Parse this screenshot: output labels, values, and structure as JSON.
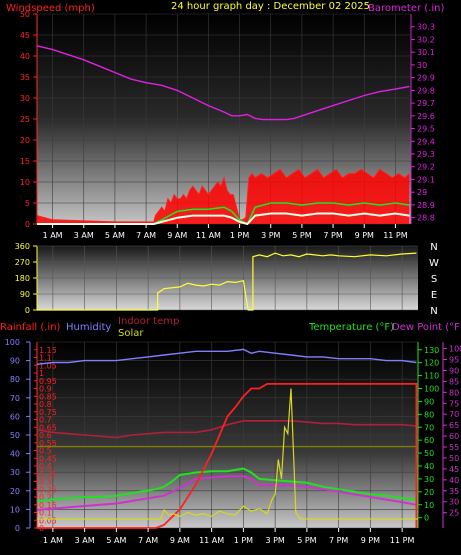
{
  "header": {
    "title": "24 hour graph day : December 02 2025"
  },
  "colors": {
    "wind": "#ff2020",
    "gust_fill": "#ff0000",
    "wind_green": "#22e022",
    "wind_white": "#e8ffe8",
    "barometer": "#e020e0",
    "direction": "#ffff30",
    "rainfall": "#ff2020",
    "humidity": "#8080ff",
    "indoor_temp": "#b0203a",
    "solar": "#d8d820",
    "solar_line": "#808000",
    "temperature": "#22e022",
    "dew_point": "#cc33cc",
    "time_ticks": "#ffffff"
  },
  "time_labels": [
    "1 AM",
    "3 AM",
    "5 AM",
    "7 AM",
    "9 AM",
    "11 AM",
    "1 PM",
    "3 PM",
    "5 PM",
    "7 PM",
    "9 PM",
    "11 PM"
  ],
  "chart_data": [
    {
      "type": "line",
      "id": "wind_barometer",
      "title": "24 hour graph day : December 02 2025",
      "left_axis_label": "Windspeed (mph)",
      "right_axis_label": "Barometer (.in)",
      "x_unit": "hour",
      "xlim": [
        0,
        24
      ],
      "left_ylim": [
        0,
        50
      ],
      "right_ylim": [
        28.75,
        30.4
      ],
      "left_ticks": [
        0,
        5,
        10,
        15,
        20,
        25,
        30,
        35,
        40,
        45,
        50
      ],
      "right_ticks": [
        "28.8",
        "28.9",
        "29",
        "29.1",
        "29.2",
        "29.3",
        "29.4",
        "29.5",
        "29.6",
        "29.7",
        "29.8",
        "29.9",
        "30",
        "30.1",
        "30.2",
        "30.3"
      ],
      "series": [
        {
          "name": "Windspeed",
          "role": "gust",
          "x": [
            0,
            0.5,
            1,
            5,
            7.5,
            7.6,
            7.8,
            8.0,
            8.2,
            8.4,
            8.6,
            8.8,
            9.0,
            9.2,
            9.4,
            9.6,
            9.8,
            10.0,
            10.2,
            10.4,
            10.6,
            10.8,
            11.0,
            11.2,
            11.4,
            11.6,
            11.8,
            12.0,
            12.2,
            12.4,
            12.6,
            12.8,
            13.0,
            13.2,
            13.4,
            13.6,
            13.8,
            14.0,
            14.4,
            14.8,
            15.2,
            15.6,
            16.0,
            16.4,
            16.8,
            17.2,
            17.6,
            18.0,
            18.4,
            18.8,
            19.2,
            19.6,
            20.0,
            20.4,
            20.8,
            21.2,
            21.6,
            22.0,
            22.4,
            22.8,
            23.2,
            23.6,
            23.9
          ],
          "y": [
            2,
            1.5,
            1,
            0.5,
            0.5,
            2,
            3,
            4,
            3,
            6,
            5,
            7,
            6,
            6,
            7,
            6,
            8,
            9,
            8,
            7,
            9,
            8,
            7,
            8,
            9,
            10,
            9,
            11,
            8,
            7,
            7,
            4,
            1,
            1,
            1.5,
            11,
            12,
            11,
            12,
            11,
            12,
            13,
            11,
            12,
            13,
            11,
            12,
            13,
            11,
            12,
            13,
            11,
            12,
            12,
            13,
            12,
            11,
            13,
            12,
            11,
            12,
            11,
            12
          ]
        },
        {
          "name": "Windspeed",
          "role": "average",
          "x": [
            0,
            7.5,
            8.0,
            8.5,
            9,
            10,
            11,
            12,
            12.5,
            13,
            13.5,
            14,
            15,
            16,
            17,
            18,
            19,
            20,
            21,
            22,
            23,
            23.9
          ],
          "y": [
            0,
            0,
            1,
            2,
            3,
            3.5,
            3.5,
            4,
            3,
            1,
            0,
            4,
            5,
            5,
            4.5,
            5,
            5,
            4.5,
            5,
            4.5,
            5,
            4.5
          ]
        },
        {
          "name": "Windspeed",
          "role": "speed",
          "x": [
            0,
            7.5,
            8.0,
            8.5,
            9,
            10,
            11,
            12,
            12.5,
            13,
            13.5,
            14,
            15,
            16,
            17,
            18,
            19,
            20,
            21,
            22,
            23,
            23.9
          ],
          "y": [
            0,
            0,
            0.5,
            1,
            1.5,
            2,
            2,
            2,
            1.5,
            0.5,
            0,
            2,
            2.5,
            2.5,
            2,
            2.5,
            2.5,
            2,
            2.5,
            2,
            2.5,
            2
          ]
        },
        {
          "name": "Barometer",
          "x": [
            0,
            1,
            2,
            3,
            4,
            5,
            6,
            7,
            8,
            9,
            10,
            11,
            12,
            12.5,
            13,
            13.5,
            14,
            14.5,
            15,
            15.5,
            16,
            16.5,
            17,
            18,
            19,
            20,
            21,
            22,
            23,
            23.9
          ],
          "y": [
            30.15,
            30.12,
            30.08,
            30.04,
            29.99,
            29.94,
            29.89,
            29.86,
            29.84,
            29.8,
            29.74,
            29.68,
            29.63,
            29.6,
            29.6,
            29.61,
            29.58,
            29.57,
            29.57,
            29.57,
            29.57,
            29.58,
            29.6,
            29.64,
            29.68,
            29.72,
            29.76,
            29.79,
            29.81,
            29.83
          ]
        }
      ]
    },
    {
      "type": "line",
      "id": "wind_direction",
      "xlim": [
        0,
        24
      ],
      "ylim": [
        0,
        360
      ],
      "left_ticks": [
        0,
        90,
        180,
        270,
        360
      ],
      "right_labels": [
        "N",
        "W",
        "S",
        "E",
        "N"
      ],
      "series": [
        {
          "name": "Wind direction",
          "x": [
            0,
            7.6,
            7.6,
            8,
            9,
            9.5,
            10,
            10.5,
            11,
            11.5,
            12,
            12.5,
            13,
            13.3,
            13.6,
            13.6,
            14,
            14.5,
            15,
            15.5,
            16,
            16.5,
            17,
            17.5,
            18,
            18.5,
            19,
            20,
            21,
            22,
            23,
            23.9
          ],
          "y": [
            0,
            0,
            95,
            120,
            130,
            150,
            140,
            135,
            145,
            140,
            160,
            155,
            165,
            0,
            0,
            300,
            310,
            300,
            320,
            305,
            310,
            300,
            315,
            310,
            305,
            310,
            305,
            300,
            310,
            305,
            315,
            320
          ]
        }
      ]
    },
    {
      "type": "line",
      "id": "rain_humidity_temperature",
      "legend": [
        "Rainfall (.in)",
        "Humidity",
        "Indoor temp",
        "Solar",
        "Temperature (°F)",
        "Dew Point (°F)"
      ],
      "xlim": [
        0,
        24
      ],
      "rain_ticks": [
        "0",
        "0.05",
        "0.1",
        "0.15",
        "0.2",
        "0.25",
        "0.3",
        "0.35",
        "0.4",
        "0.45",
        "0.5",
        "0.55",
        "0.6",
        "0.65",
        "0.7",
        "0.75",
        "0.8",
        "0.85",
        "0.9",
        "0.95",
        "1",
        "1.05",
        "1.1",
        "1.15"
      ],
      "rain_ylim": [
        0,
        1.2
      ],
      "humidity_ticks": [
        0,
        10,
        20,
        30,
        40,
        50,
        60,
        70,
        80,
        90,
        100
      ],
      "humidity_ylim": [
        0,
        100
      ],
      "temperature_ticks": [
        0,
        10,
        20,
        30,
        40,
        50,
        60,
        70,
        80,
        90,
        100,
        110,
        120,
        130
      ],
      "temperature_ylim": [
        -8,
        136
      ],
      "dew_point_ticks": [
        25,
        30,
        35,
        40,
        45,
        50,
        55,
        60,
        65,
        70,
        75,
        80,
        85,
        90,
        95,
        100
      ],
      "dew_point_ylim": [
        18,
        103
      ],
      "series": [
        {
          "name": "Humidity",
          "axis": "humidity",
          "x": [
            0,
            1,
            2,
            3,
            4,
            5,
            6,
            7,
            8,
            9,
            10,
            11,
            12,
            13,
            13.5,
            14,
            15,
            16,
            17,
            18,
            19,
            20,
            21,
            22,
            23,
            23.9
          ],
          "y": [
            88,
            89,
            89,
            90,
            90,
            90,
            91,
            92,
            93,
            94,
            95,
            95,
            95,
            96,
            94,
            95,
            94,
            93,
            92,
            92,
            91,
            91,
            91,
            90,
            90,
            89
          ]
        },
        {
          "name": "Indoor temp",
          "axis": "temperature",
          "x": [
            0,
            1,
            2,
            3,
            4,
            5,
            6,
            7,
            8,
            9,
            10,
            11,
            12,
            13,
            14,
            15,
            16,
            17,
            18,
            19,
            20,
            21,
            22,
            23,
            23.9
          ],
          "y": [
            68,
            66,
            65,
            64,
            63,
            62,
            64,
            65,
            66,
            66,
            66,
            68,
            72,
            75,
            75,
            75,
            75,
            74,
            73,
            73,
            72,
            72,
            72,
            72,
            71
          ]
        },
        {
          "name": "Solar",
          "axis": "temperature",
          "role": "reference",
          "x": [
            0,
            23.9
          ],
          "y": [
            55,
            55
          ]
        },
        {
          "name": "Temperature (°F)",
          "axis": "temperature",
          "x": [
            0,
            1,
            2,
            3,
            4,
            5,
            6,
            7,
            7.5,
            8,
            8.5,
            9,
            10,
            11,
            12,
            12.5,
            13,
            13.5,
            14,
            15,
            16,
            17,
            18,
            19,
            20,
            21,
            22,
            23,
            23.9
          ],
          "y": [
            13,
            14,
            15,
            16,
            16,
            17,
            19,
            21,
            22,
            24,
            28,
            33,
            35,
            36,
            36,
            37,
            38,
            35,
            30,
            29,
            28,
            27,
            24,
            22,
            20,
            18,
            17,
            15,
            14
          ]
        },
        {
          "name": "Dew Point (°F)",
          "axis": "temperature",
          "x": [
            0,
            1,
            2,
            3,
            4,
            5,
            6,
            7,
            8,
            9,
            10,
            11,
            12,
            13,
            13.5,
            14,
            15,
            16,
            17,
            18,
            19,
            20,
            21,
            22,
            23,
            23.9
          ],
          "y": [
            6,
            7,
            8,
            9,
            10,
            11,
            13,
            15,
            17,
            23,
            30,
            31,
            32,
            32,
            30,
            25,
            25,
            25,
            24,
            22,
            20,
            18,
            16,
            14,
            12,
            10
          ]
        },
        {
          "name": "Rainfall (.in)",
          "axis": "rain",
          "x": [
            0,
            7.5,
            8,
            9,
            10,
            11,
            12,
            12.5,
            13,
            13.5,
            14,
            14.5,
            15,
            16,
            17,
            18,
            19,
            20,
            21,
            22,
            23,
            23.9,
            23.9
          ],
          "y": [
            0,
            0,
            0.02,
            0.12,
            0.28,
            0.48,
            0.72,
            0.78,
            0.85,
            0.9,
            0.9,
            0.93,
            0.93,
            0.93,
            0.93,
            0.93,
            0.93,
            0.93,
            0.93,
            0.93,
            0.93,
            0.93,
            0
          ]
        },
        {
          "name": "Solar",
          "axis": "temperature",
          "x": [
            0,
            7.8,
            8,
            8.3,
            8.6,
            9,
            9.5,
            10,
            10.5,
            11,
            11.5,
            12,
            12.5,
            13,
            13.5,
            14,
            14.5,
            14.8,
            15.0,
            15.2,
            15.4,
            15.6,
            15.8,
            16,
            16.3,
            16.6,
            17,
            24
          ],
          "y": [
            -1,
            -1,
            6,
            2,
            3,
            1,
            4,
            2,
            3,
            1,
            5,
            3,
            2,
            9,
            5,
            7,
            3,
            14,
            18,
            45,
            30,
            70,
            65,
            100,
            4,
            -1,
            -1,
            -1
          ]
        }
      ]
    }
  ]
}
